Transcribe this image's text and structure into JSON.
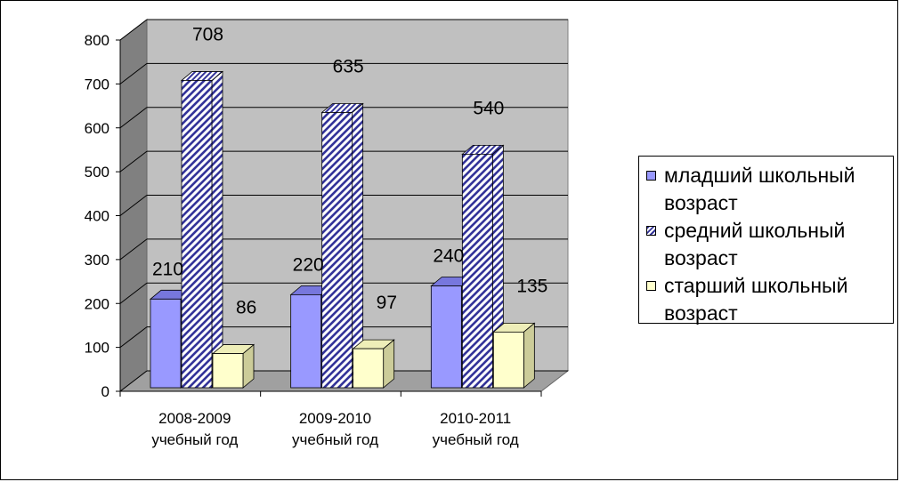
{
  "chart_data": {
    "type": "bar",
    "categories": [
      "2008-2009\nучебный год",
      "2009-2010\nучебный год",
      "2010-2011\nучебный год"
    ],
    "series": [
      {
        "name": "младший школьный возраст",
        "values": [
          210,
          220,
          240
        ],
        "color": "#9999ff",
        "pattern": "solid"
      },
      {
        "name": "средний школьный возраст",
        "values": [
          708,
          635,
          540
        ],
        "color": "#333399",
        "pattern": "diagonal-stripes"
      },
      {
        "name": "старший школьный возраст",
        "values": [
          86,
          97,
          135
        ],
        "color": "#ffffcc",
        "pattern": "solid"
      }
    ],
    "ylim": [
      0,
      800
    ],
    "yticks": [
      "0",
      "100",
      "200",
      "300",
      "400",
      "500",
      "600",
      "700",
      "800"
    ],
    "grid": true,
    "legend_position": "right",
    "wall_color": "#c0c0c0"
  }
}
